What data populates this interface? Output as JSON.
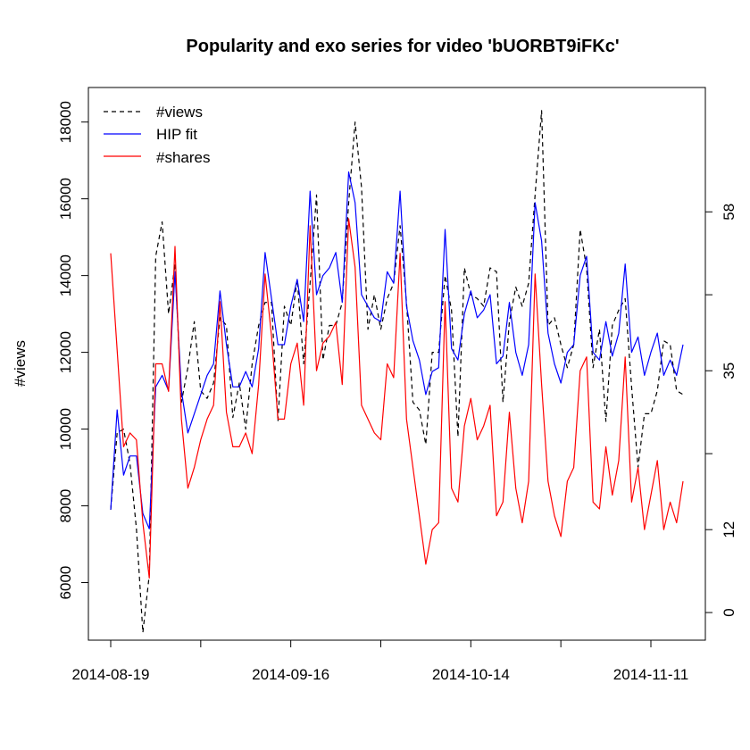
{
  "chart_data": {
    "type": "line",
    "title": "Popularity and exo series for video 'bUORBT9iFKc'",
    "xlabel": "",
    "ylabel": "#views",
    "y2label": "",
    "x_start": "2014-08-19",
    "x_end": "2014-11-20",
    "xtick_labels": [
      "2014-08-19",
      "2014-09-16",
      "2014-10-14",
      "2014-11-11"
    ],
    "ylim": [
      4500,
      18900
    ],
    "yticks": [
      6000,
      8000,
      10000,
      12000,
      14000,
      16000,
      18000
    ],
    "y2lim": [
      -4,
      76
    ],
    "y2ticks": [
      0,
      12,
      35,
      58
    ],
    "grid": false,
    "legend_position": "top-left",
    "colors": {
      "views": "#000000",
      "hip": "#0000ff",
      "shares": "#ff0000"
    },
    "series": [
      {
        "name": "#views",
        "axis": "left",
        "style": "dashed",
        "values": [
          7900,
          9900,
          10000,
          9100,
          7400,
          4700,
          6200,
          14500,
          15400,
          13000,
          14300,
          10700,
          11600,
          12800,
          11000,
          10800,
          11200,
          12900,
          12700,
          10300,
          11200,
          10000,
          11700,
          12700,
          13300,
          13300,
          10200,
          13200,
          12700,
          13900,
          11700,
          13800,
          16100,
          11800,
          12700,
          12700,
          13300,
          15900,
          18000,
          16300,
          12600,
          13500,
          12600,
          13400,
          13800,
          15300,
          13300,
          10700,
          10500,
          9600,
          12000,
          12000,
          14000,
          13100,
          9800,
          14200,
          13500,
          13400,
          13200,
          14200,
          14100,
          10700,
          12800,
          13700,
          13200,
          13800,
          16100,
          18300,
          12700,
          12900,
          12200,
          11600,
          12200,
          15200,
          14200,
          11600,
          12600,
          10200,
          12700,
          13100,
          13400,
          11100,
          9000,
          10400,
          10400,
          11000,
          12300,
          12200,
          11000,
          10900
        ]
      },
      {
        "name": "HIP fit",
        "axis": "left",
        "style": "solid",
        "values": [
          7900,
          10500,
          8800,
          9300,
          9300,
          7800,
          7400,
          11100,
          11400,
          11000,
          14100,
          11000,
          9900,
          10400,
          10900,
          11400,
          11700,
          13600,
          12200,
          11100,
          11100,
          11500,
          11100,
          12100,
          14600,
          13400,
          12200,
          12200,
          13200,
          13900,
          12800,
          16200,
          13500,
          14000,
          14200,
          14600,
          13300,
          16700,
          15900,
          13500,
          13200,
          12900,
          12800,
          14100,
          13800,
          16200,
          13200,
          12300,
          11800,
          10900,
          11500,
          11600,
          15200,
          12100,
          11800,
          13000,
          13600,
          12900,
          13100,
          13500,
          11700,
          11900,
          13300,
          12000,
          11400,
          12200,
          15900,
          14900,
          12500,
          11700,
          11200,
          12000,
          12200,
          14000,
          14500,
          12000,
          11800,
          12800,
          11900,
          12500,
          14300,
          12000,
          12400,
          11400,
          12000,
          12500,
          11400,
          11800,
          11400,
          12200
        ]
      },
      {
        "name": "#shares",
        "axis": "right",
        "style": "solid",
        "values": [
          52,
          38,
          24,
          26,
          25,
          13,
          5,
          36,
          36,
          32,
          53,
          28,
          18,
          21,
          25,
          28,
          30,
          45,
          29,
          24,
          24,
          26,
          23,
          33,
          49,
          40,
          28,
          28,
          36,
          39,
          30,
          56,
          35,
          39,
          40,
          42,
          33,
          57,
          50,
          30,
          28,
          26,
          25,
          36,
          34,
          52,
          28,
          21,
          14,
          7,
          12,
          13,
          45,
          18,
          16,
          27,
          31,
          25,
          27,
          30,
          14,
          16,
          29,
          18,
          13,
          19,
          49,
          33,
          19,
          14,
          11,
          19,
          21,
          35,
          37,
          16,
          15,
          24,
          17,
          22,
          37,
          16,
          21,
          12,
          17,
          22,
          12,
          16,
          13,
          19
        ]
      }
    ]
  }
}
